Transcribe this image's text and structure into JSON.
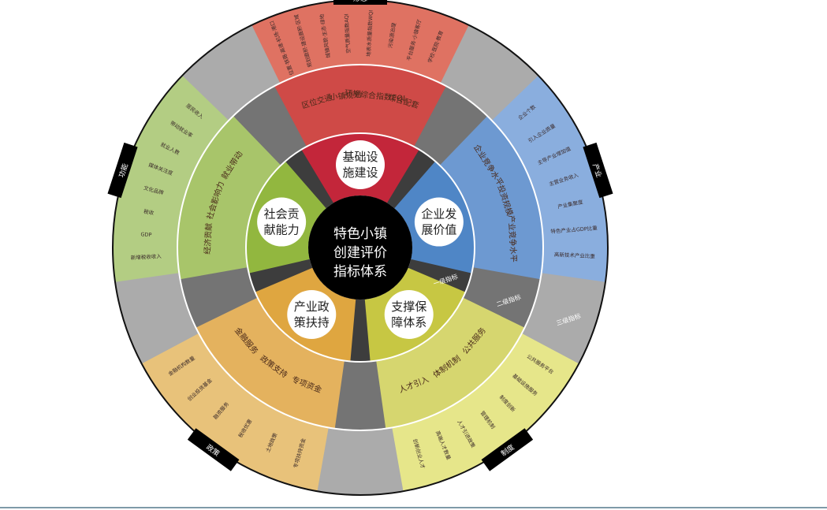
{
  "center_title": [
    "特色小镇",
    "创建评价",
    "指标体系"
  ],
  "ring_labels": {
    "level1": "一级指标",
    "level2": "二级指标",
    "level3": "三级指标"
  },
  "segments": [
    {
      "key": "infrastructure",
      "level1": [
        "基础设",
        "施建设"
      ],
      "category": "形态",
      "colors": {
        "inner": "#c3263a",
        "mid": "#cf4a47",
        "outer": "#df7262"
      },
      "level2": [
        "区位交通",
        "小镇规划",
        "环境综合指数EQI",
        "综合配套"
      ],
      "level3": [
        "位置·铁路·高速·机场·港口",
        "规划面积·建设面积·区域",
        "城镇风貌·生态·绿地",
        "空气质量指数AQI",
        "地表水质量指数WQI",
        "污染源治理",
        "平台服务·小镇客厅",
        "学校·医院·教育"
      ]
    },
    {
      "key": "enterprise",
      "level1": [
        "企业发",
        "展价值"
      ],
      "category": "产业",
      "colors": {
        "inner": "#4f86c6",
        "mid": "#6d99d1",
        "outer": "#8aaede"
      },
      "level2": [
        "企业竞争水平",
        "投资规模",
        "产业竞争水平"
      ],
      "level3": [
        "企业个数",
        "引入企业质量",
        "主导产业增加值",
        "主营业务收入",
        "产业集聚度",
        "特色产业占GDP比重",
        "高新技术产业比重"
      ]
    },
    {
      "key": "support",
      "level1": [
        "支撑保",
        "障体系"
      ],
      "category": "制度",
      "colors": {
        "inner": "#c7c743",
        "mid": "#d6d66f",
        "outer": "#e6e68a"
      },
      "level2": [
        "公共服务",
        "体制机制",
        "人才引入"
      ],
      "level3": [
        "公共服务平台",
        "基础设施服务",
        "制度创新",
        "管理机制",
        "人才引进政策",
        "高端人才数量",
        "创新创业人才"
      ]
    },
    {
      "key": "policy",
      "level1": [
        "产业政",
        "策扶持"
      ],
      "category": "政策",
      "colors": {
        "inner": "#dfa640",
        "mid": "#e4b25e",
        "outer": "#e8c27a"
      },
      "level2": [
        "专项资金",
        "政策支持",
        "金融服务"
      ],
      "level3": [
        "专项扶持资金",
        "土地政策",
        "税收优惠",
        "融资服务",
        "创业投资基金",
        "金融机构数量"
      ]
    },
    {
      "key": "social",
      "level1": [
        "社会贡",
        "献能力"
      ],
      "category": "功能",
      "colors": {
        "inner": "#92b73f",
        "mid": "#a8c56a",
        "outer": "#b3cd83"
      },
      "level2": [
        "经济贡献",
        "社会影响力",
        "就业带动"
      ],
      "level3": [
        "新增税收收入",
        "GDP",
        "税收",
        "文化品牌",
        "媒体关注度",
        "就业人数",
        "带动就业率",
        "居民收入"
      ]
    }
  ],
  "band_labels": [
    "形态",
    "产业",
    "制度",
    "政策",
    "功能"
  ]
}
